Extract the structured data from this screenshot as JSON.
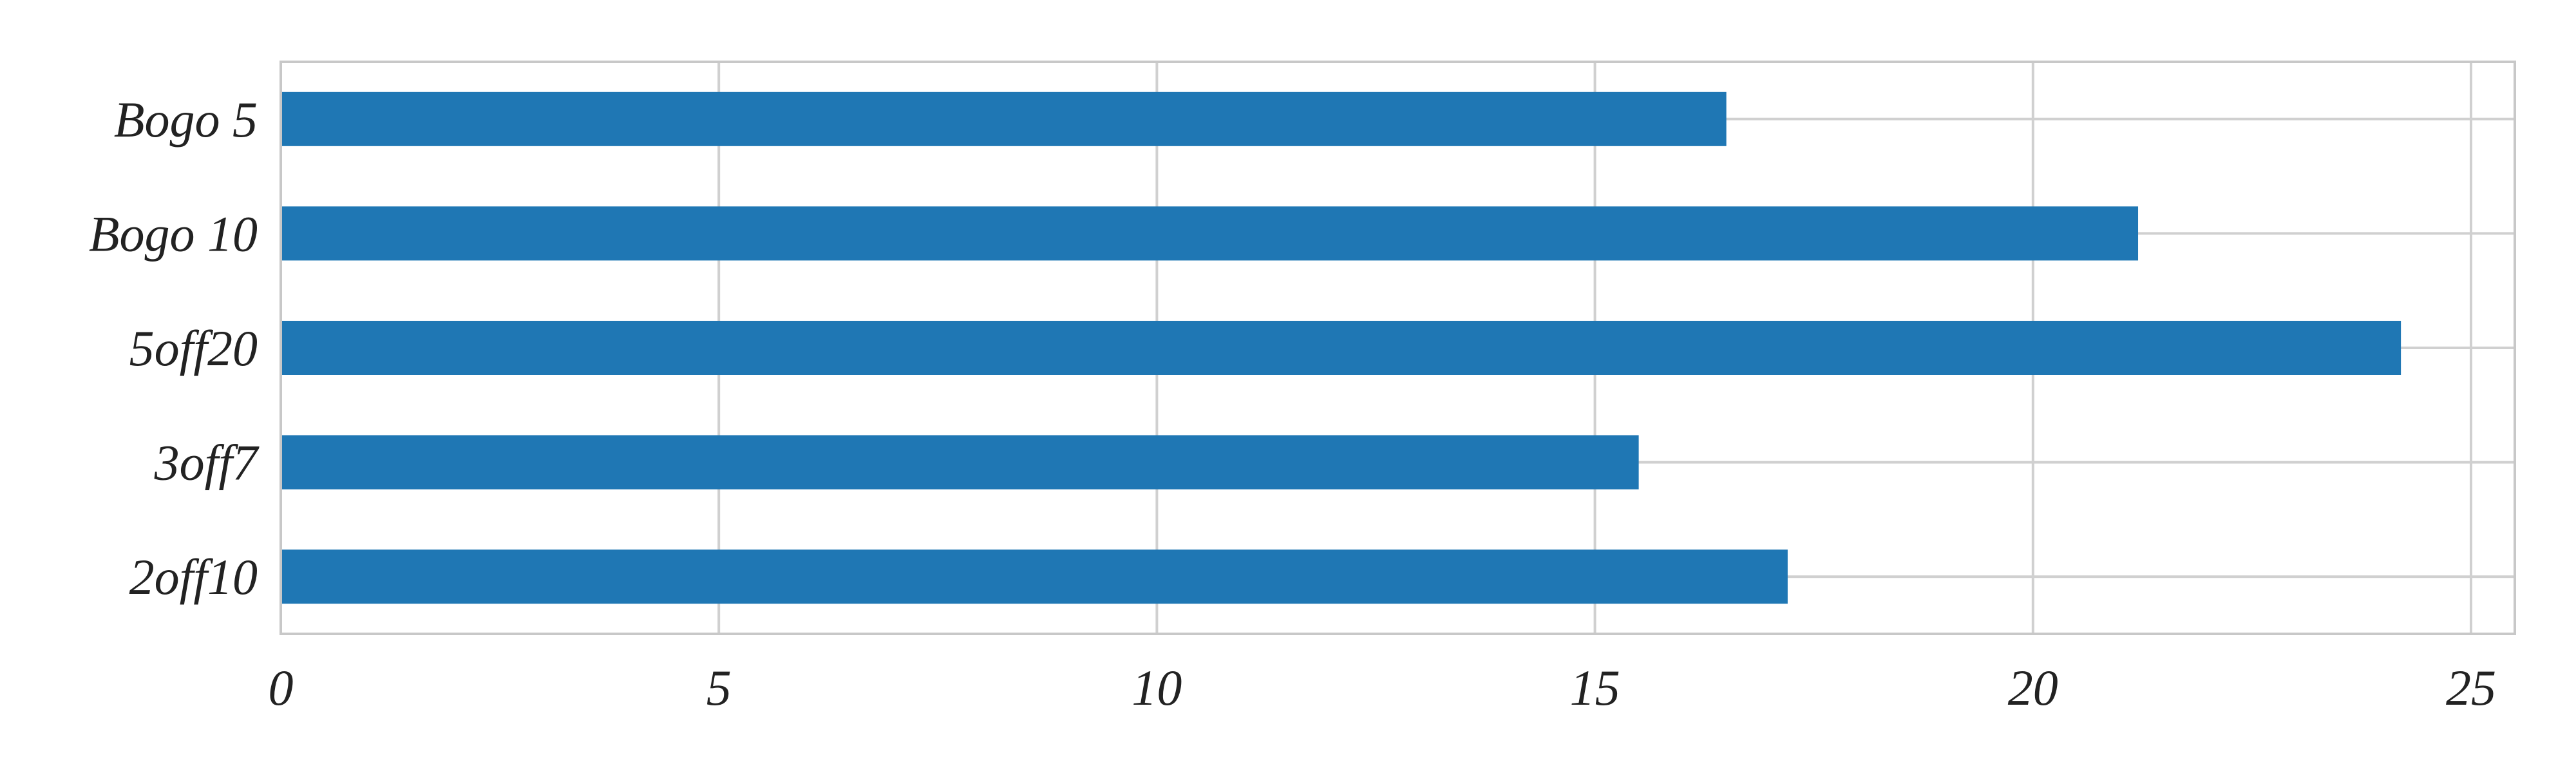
{
  "chart_data": {
    "type": "bar",
    "orientation": "horizontal",
    "title": "",
    "xlabel": "",
    "ylabel": "",
    "categories": [
      "Bogo 5",
      "Bogo 10",
      "5off20",
      "3off7",
      "2off10"
    ],
    "values": [
      16.5,
      21.2,
      24.2,
      15.5,
      17.2
    ],
    "xlim": [
      0,
      25.5
    ],
    "xticks": [
      0,
      5,
      10,
      15,
      20,
      25
    ],
    "grid": true,
    "legend": "none",
    "colors": {
      "bar": "#1f77b4",
      "grid": "#d0d0d0",
      "axis": "#c8c8c8",
      "text": "#222222"
    }
  }
}
